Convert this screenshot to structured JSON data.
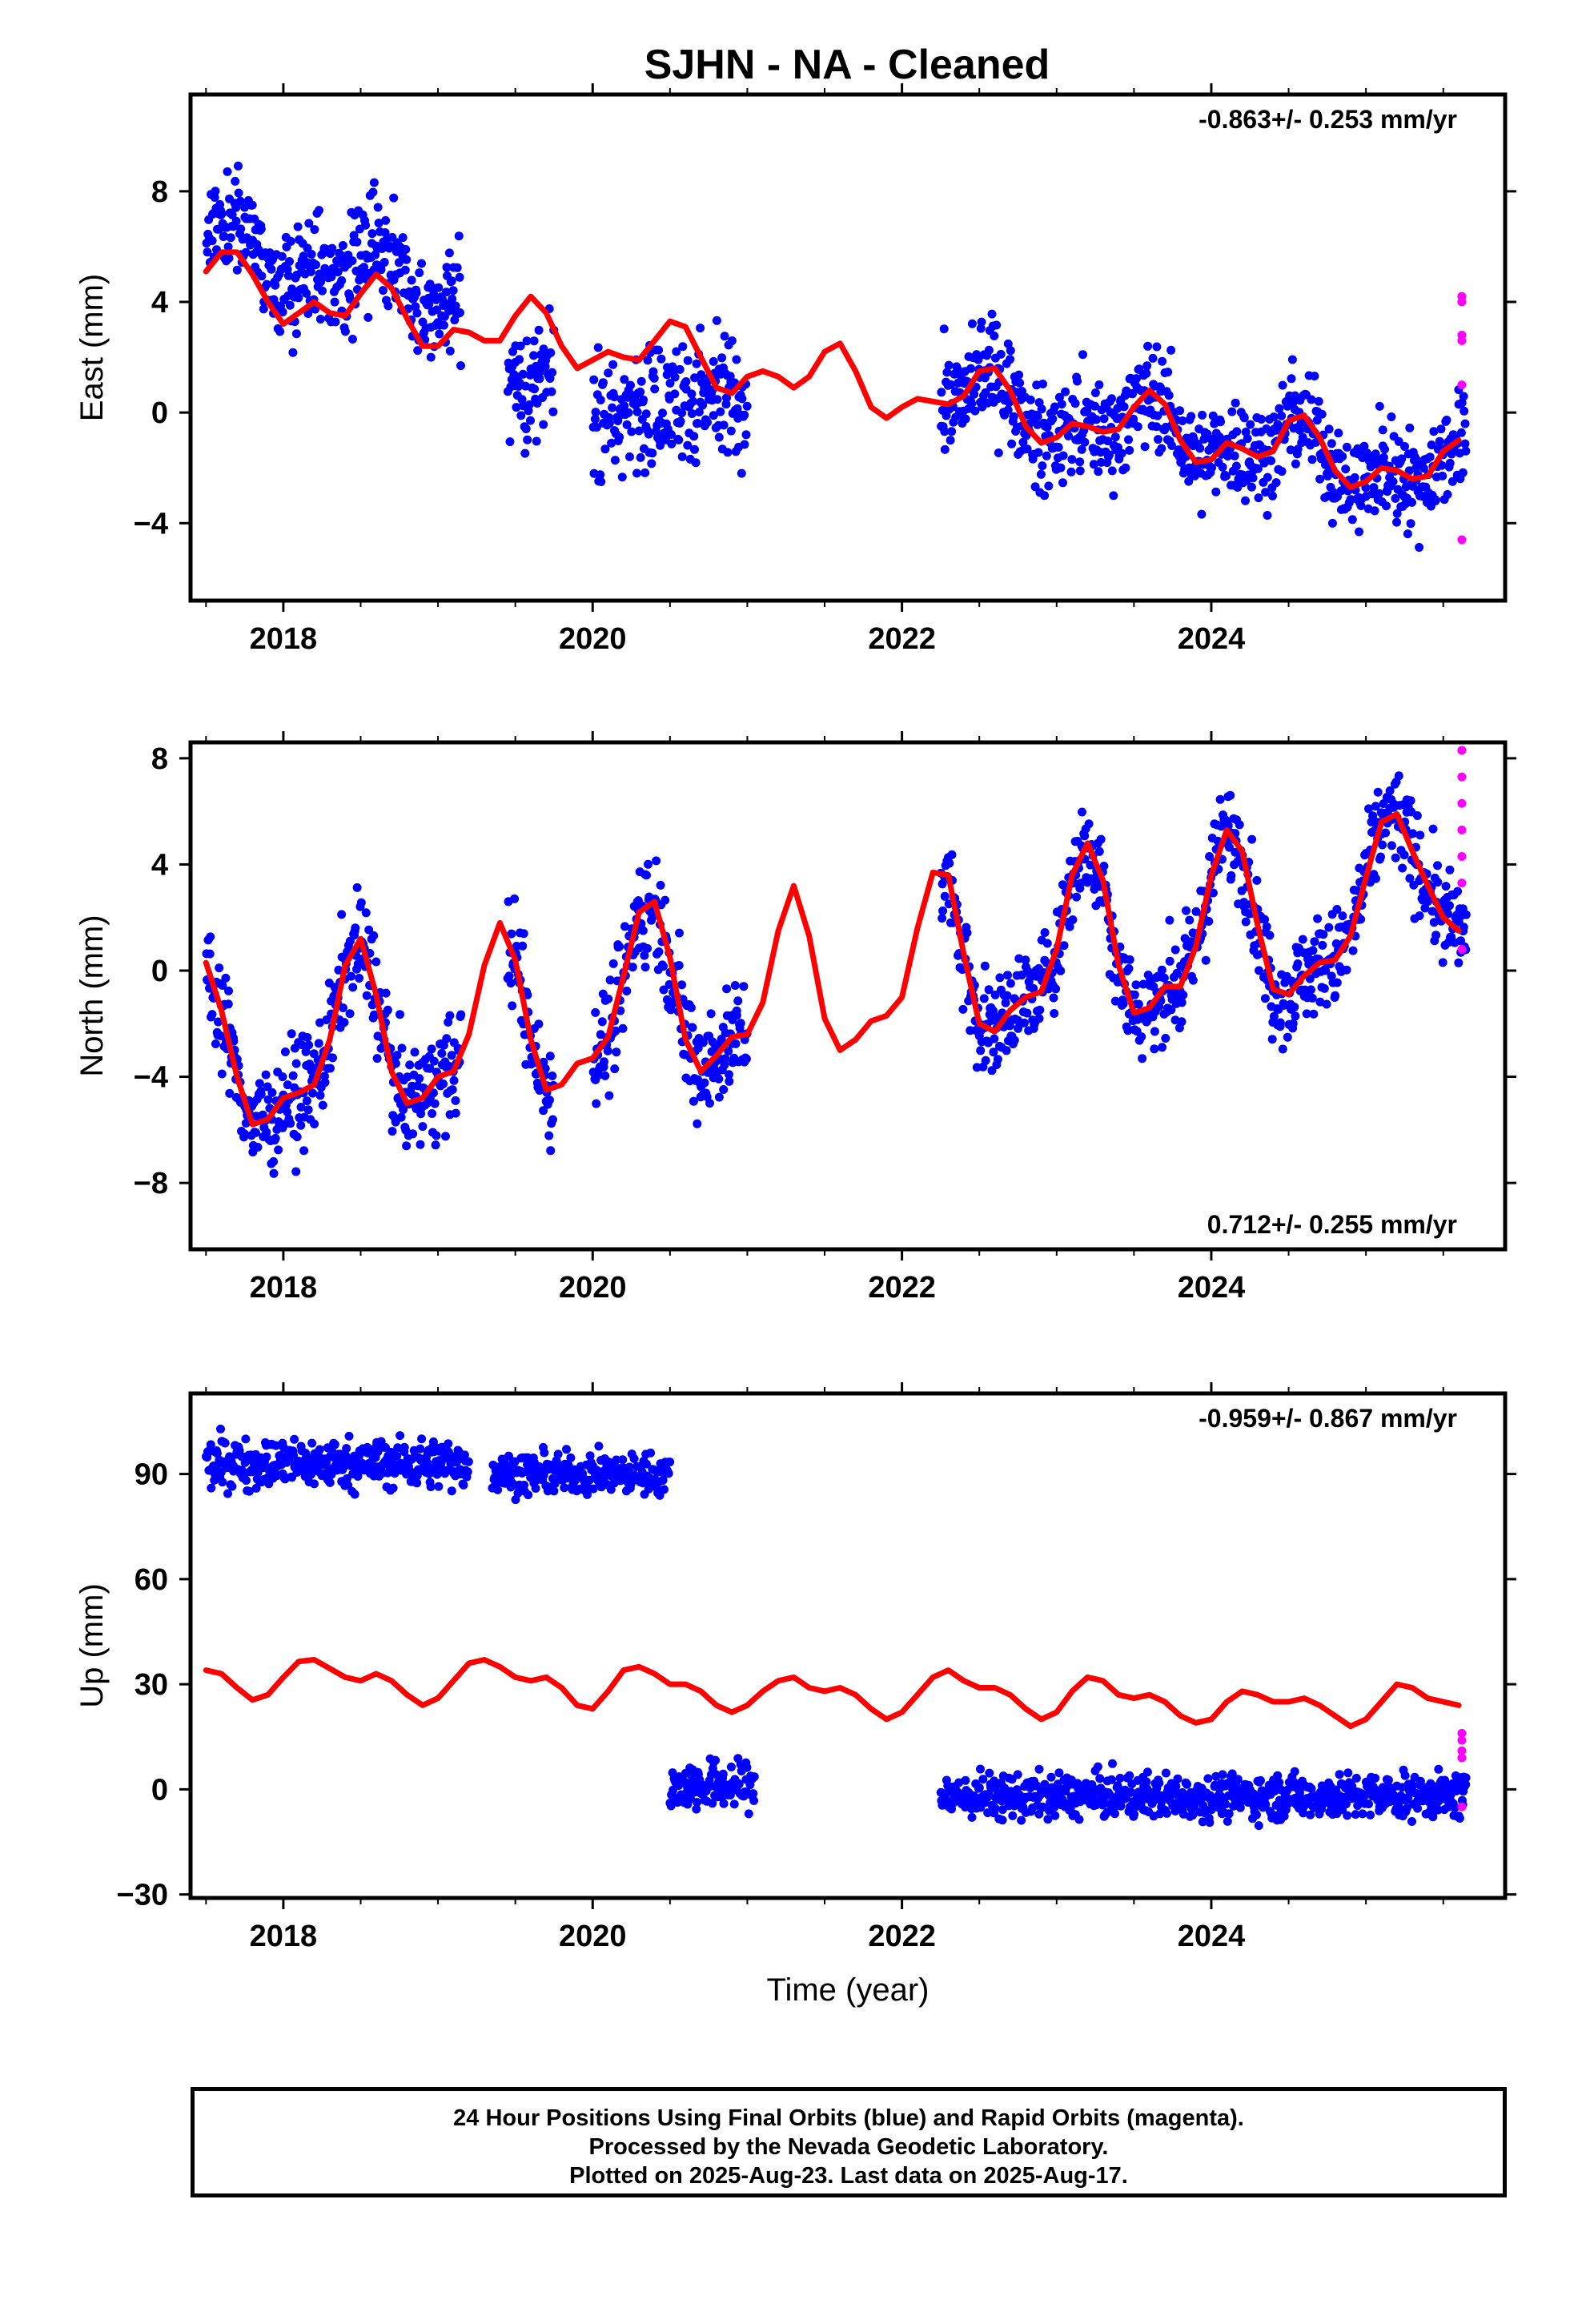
{
  "chart_data": {
    "type": "scatter",
    "title": "SJHN  - NA - Cleaned",
    "xlabel": "Time (year)",
    "x_ticks": [
      "2018",
      "2020",
      "2022",
      "2024"
    ],
    "xlim": [
      2017.4,
      2025.9
    ],
    "colors": {
      "final_orbits": "#0000ff",
      "rapid_orbits": "#ff00ff",
      "model_fit": "#ff0000"
    },
    "panels": [
      {
        "ylabel": "East (mm)",
        "ylim": [
          -6.8,
          11.5
        ],
        "yticks": [
          "−4",
          "0",
          "4",
          "8"
        ],
        "ytick_values": [
          -4,
          0,
          4,
          8
        ],
        "rate": "-0.863+/- 0.253 mm/yr",
        "rate_position": "top-right",
        "fit": {
          "x": [
            2017.5,
            2017.6,
            2017.7,
            2017.8,
            2017.9,
            2018.0,
            2018.1,
            2018.2,
            2018.3,
            2018.4,
            2018.5,
            2018.6,
            2018.7,
            2018.8,
            2018.9,
            2019.0,
            2019.1,
            2019.2,
            2019.3,
            2019.4,
            2019.5,
            2019.6,
            2019.7,
            2019.8,
            2019.9,
            2020.0,
            2020.1,
            2020.2,
            2020.3,
            2020.4,
            2020.5,
            2020.6,
            2020.7,
            2020.8,
            2020.9,
            2021.0,
            2021.1,
            2021.2,
            2021.3,
            2021.4,
            2021.5,
            2021.6,
            2021.7,
            2021.8,
            2021.9,
            2022.0,
            2022.1,
            2022.2,
            2022.3,
            2022.4,
            2022.5,
            2022.6,
            2022.7,
            2022.8,
            2022.9,
            2023.0,
            2023.1,
            2023.2,
            2023.3,
            2023.4,
            2023.5,
            2023.6,
            2023.7,
            2023.8,
            2023.9,
            2024.0,
            2024.1,
            2024.2,
            2024.3,
            2024.4,
            2024.5,
            2024.6,
            2024.7,
            2024.8,
            2024.9,
            2025.0,
            2025.1,
            2025.2,
            2025.3,
            2025.4,
            2025.5,
            2025.6
          ],
          "y": [
            5.1,
            5.8,
            5.8,
            5.0,
            4.0,
            3.2,
            3.6,
            4.0,
            3.6,
            3.5,
            4.3,
            5.0,
            4.5,
            3.4,
            2.4,
            2.4,
            3.0,
            2.9,
            2.6,
            2.6,
            3.5,
            4.2,
            3.6,
            2.4,
            1.6,
            1.9,
            2.2,
            2.0,
            1.9,
            2.6,
            3.3,
            3.1,
            2.0,
            0.9,
            0.7,
            1.3,
            1.5,
            1.3,
            0.9,
            1.3,
            2.2,
            2.5,
            1.5,
            0.2,
            -0.2,
            0.2,
            0.5,
            0.4,
            0.3,
            0.6,
            1.5,
            1.6,
            0.8,
            -0.5,
            -1.1,
            -0.9,
            -0.4,
            -0.5,
            -0.7,
            -0.6,
            0.2,
            0.8,
            0.3,
            -1.0,
            -1.8,
            -1.7,
            -1.1,
            -1.3,
            -1.6,
            -1.4,
            -0.3,
            -0.1,
            -0.9,
            -2.1,
            -2.7,
            -2.5,
            -2.0,
            -2.1,
            -2.4,
            -2.3,
            -1.4,
            -1.0
          ]
        },
        "scatter": [
          {
            "x_range": [
              2017.5,
              2019.15
            ],
            "trend": 6.2,
            "noise": 1.4
          },
          {
            "x_range": [
              2019.45,
              2019.75
            ],
            "trend": 1.0,
            "noise": 1.5
          },
          {
            "x_range": [
              2020.0,
              2020.35
            ],
            "trend": 0.0,
            "noise": 1.5
          },
          {
            "x_range": [
              2020.35,
              2021.0
            ],
            "trend": 0.6,
            "noise": 1.6
          },
          {
            "x_range": [
              2022.25,
              2025.65
            ],
            "trend": -0.6,
            "noise": 1.3
          }
        ],
        "rapid": {
          "x": 2025.62,
          "y": [
            4.2,
            4.0,
            2.8,
            2.6,
            1.0,
            -4.6
          ]
        }
      },
      {
        "ylabel": "North (mm)",
        "ylim": [
          -10.5,
          8.6
        ],
        "yticks": [
          "−8",
          "−4",
          "0",
          "4",
          "8"
        ],
        "ytick_values": [
          -8,
          -4,
          0,
          4,
          8
        ],
        "rate": "0.712+/- 0.255 mm/yr",
        "rate_position": "bottom-right",
        "fit": {
          "x": [
            2017.5,
            2017.6,
            2017.7,
            2017.8,
            2017.9,
            2018.0,
            2018.1,
            2018.2,
            2018.3,
            2018.4,
            2018.5,
            2018.6,
            2018.7,
            2018.8,
            2018.9,
            2019.0,
            2019.1,
            2019.2,
            2019.3,
            2019.4,
            2019.5,
            2019.6,
            2019.7,
            2019.8,
            2019.9,
            2020.0,
            2020.1,
            2020.2,
            2020.3,
            2020.4,
            2020.5,
            2020.6,
            2020.7,
            2020.8,
            2020.9,
            2021.0,
            2021.1,
            2021.2,
            2021.3,
            2021.4,
            2021.5,
            2021.6,
            2021.7,
            2021.8,
            2021.9,
            2022.0,
            2022.1,
            2022.2,
            2022.3,
            2022.4,
            2022.5,
            2022.6,
            2022.7,
            2022.8,
            2022.9,
            2023.0,
            2023.1,
            2023.2,
            2023.3,
            2023.4,
            2023.5,
            2023.6,
            2023.7,
            2023.8,
            2023.9,
            2024.0,
            2024.1,
            2024.2,
            2024.3,
            2024.4,
            2024.5,
            2024.6,
            2024.7,
            2024.8,
            2024.9,
            2025.0,
            2025.1,
            2025.2,
            2025.3,
            2025.4,
            2025.5,
            2025.6
          ],
          "y": [
            0.3,
            -1.5,
            -4.0,
            -5.8,
            -5.6,
            -4.8,
            -4.6,
            -4.3,
            -2.6,
            0.2,
            1.2,
            -0.9,
            -3.8,
            -5.0,
            -4.8,
            -4.0,
            -3.8,
            -2.4,
            0.2,
            1.8,
            0.4,
            -2.6,
            -4.5,
            -4.3,
            -3.5,
            -3.3,
            -2.5,
            -0.2,
            2.2,
            2.6,
            0.5,
            -2.6,
            -3.8,
            -3.2,
            -2.5,
            -2.4,
            -1.2,
            1.5,
            3.2,
            1.3,
            -1.8,
            -3.0,
            -2.6,
            -1.9,
            -1.7,
            -1.0,
            1.6,
            3.7,
            3.6,
            0.6,
            -2.0,
            -2.3,
            -1.5,
            -1.0,
            -0.8,
            0.8,
            3.6,
            4.8,
            3.4,
            0.2,
            -1.6,
            -1.4,
            -0.6,
            -0.6,
            0.9,
            3.6,
            5.3,
            4.5,
            1.7,
            -0.7,
            -0.9,
            -0.2,
            0.3,
            0.4,
            1.3,
            3.5,
            5.6,
            5.9,
            4.5,
            3.2,
            2.0,
            1.5
          ]
        },
        "scatter": [
          {
            "x_range": [
              2017.5,
              2019.15
            ],
            "trend": 0.0,
            "noise": 1.4
          },
          {
            "x_range": [
              2019.45,
              2019.75
            ],
            "trend": 0.5,
            "noise": 1.5
          },
          {
            "x_range": [
              2020.0,
              2021.0
            ],
            "trend": 0.0,
            "noise": 1.5
          },
          {
            "x_range": [
              2022.25,
              2025.65
            ],
            "trend": 0.3,
            "noise": 1.3
          }
        ],
        "rapid": {
          "x": 2025.62,
          "y": [
            8.3,
            7.3,
            6.3,
            5.3,
            4.3,
            3.3,
            0.8
          ]
        }
      },
      {
        "ylabel": "Up (mm)",
        "ylim": [
          -31,
          113
        ],
        "yticks": [
          "−30",
          "0",
          "30",
          "60",
          "90"
        ],
        "ytick_values": [
          -30,
          0,
          30,
          60,
          90
        ],
        "rate": "-0.959+/- 0.867 mm/yr",
        "rate_position": "top-right",
        "fit": {
          "x": [
            2017.5,
            2017.6,
            2017.7,
            2017.8,
            2017.9,
            2018.0,
            2018.1,
            2018.2,
            2018.3,
            2018.4,
            2018.5,
            2018.6,
            2018.7,
            2018.8,
            2018.9,
            2019.0,
            2019.1,
            2019.2,
            2019.3,
            2019.4,
            2019.5,
            2019.6,
            2019.7,
            2019.8,
            2019.9,
            2020.0,
            2020.1,
            2020.2,
            2020.3,
            2020.4,
            2020.5,
            2020.6,
            2020.7,
            2020.8,
            2020.9,
            2021.0,
            2021.1,
            2021.2,
            2021.3,
            2021.4,
            2021.5,
            2021.6,
            2021.7,
            2021.8,
            2021.9,
            2022.0,
            2022.1,
            2022.2,
            2022.3,
            2022.4,
            2022.5,
            2022.6,
            2022.7,
            2022.8,
            2022.9,
            2023.0,
            2023.1,
            2023.2,
            2023.3,
            2023.4,
            2023.5,
            2023.6,
            2023.7,
            2023.8,
            2023.9,
            2024.0,
            2024.1,
            2024.2,
            2024.3,
            2024.4,
            2024.5,
            2024.6,
            2024.7,
            2024.8,
            2024.9,
            2025.0,
            2025.1,
            2025.2,
            2025.3,
            2025.4,
            2025.5,
            2025.6
          ],
          "y": [
            34,
            33,
            29,
            25.5,
            27,
            32,
            36.5,
            37,
            34.5,
            32,
            31,
            33,
            31,
            27,
            24,
            26,
            31,
            36,
            37,
            35,
            32,
            31,
            32,
            29,
            24,
            23,
            28,
            34,
            35,
            33,
            30,
            30,
            28,
            24,
            22,
            24,
            28,
            31,
            32,
            29,
            28,
            29,
            27,
            23,
            20,
            22,
            27,
            32,
            34,
            31,
            29,
            29,
            27,
            23,
            20,
            22,
            28,
            32,
            31,
            27,
            26,
            27,
            25,
            21,
            19,
            20,
            25,
            28,
            27,
            25,
            25,
            26,
            24,
            21,
            18,
            20,
            25,
            30,
            29,
            26,
            25,
            24
          ]
        },
        "scatter": [
          {
            "x_range": [
              2017.5,
              2019.2
            ],
            "trend": 93,
            "noise": 5
          },
          {
            "x_range": [
              2019.35,
              2020.5
            ],
            "trend": 90,
            "noise": 4
          },
          {
            "x_range": [
              2020.5,
              2021.05
            ],
            "trend": 1,
            "noise": 5
          },
          {
            "x_range": [
              2022.25,
              2025.65
            ],
            "trend": -2,
            "noise": 4.5
          }
        ],
        "rapid": {
          "x": 2025.62,
          "y": [
            16,
            14,
            11,
            9,
            -5
          ]
        }
      }
    ]
  },
  "caption": {
    "line1": "24 Hour Positions Using Final Orbits (blue) and Rapid Orbits (magenta).",
    "line2": "Processed by the Nevada Geodetic Laboratory.",
    "line3": "Plotted on 2025-Aug-23. Last data on 2025-Aug-17."
  }
}
